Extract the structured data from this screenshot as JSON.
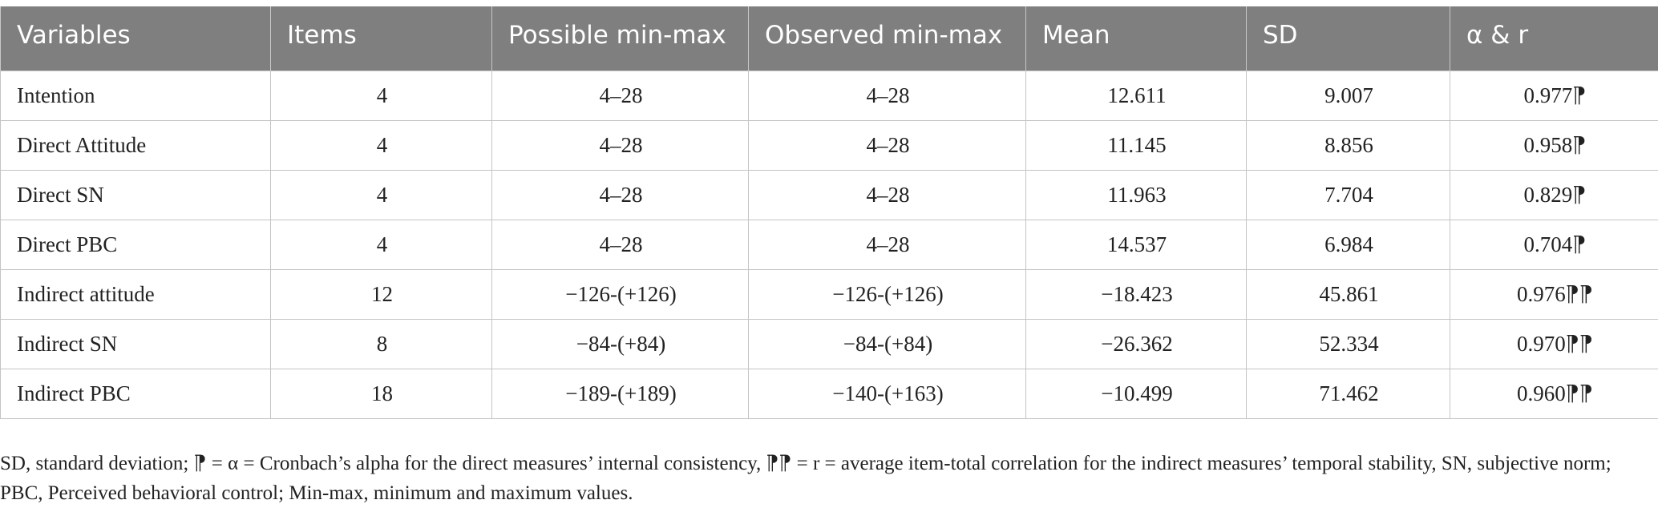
{
  "table": {
    "headers": [
      "Variables",
      "Items",
      "Possible min-max",
      "Observed min-max",
      "Mean",
      "SD",
      "α & r"
    ],
    "rows": [
      [
        "Intention",
        "4",
        "4–28",
        "4–28",
        "12.611",
        "9.007",
        "0.977⁋"
      ],
      [
        "Direct Attitude",
        "4",
        "4–28",
        "4–28",
        "11.145",
        "8.856",
        "0.958⁋"
      ],
      [
        "Direct SN",
        "4",
        "4–28",
        "4–28",
        "11.963",
        "7.704",
        "0.829⁋"
      ],
      [
        "Direct PBC",
        "4",
        "4–28",
        "4–28",
        "14.537",
        "6.984",
        "0.704⁋"
      ],
      [
        "Indirect attitude",
        "12",
        "−126-(+126)",
        "−126-(+126)",
        "−18.423",
        "45.861",
        "0.976⁋⁋"
      ],
      [
        "Indirect SN",
        "8",
        "−84-(+84)",
        "−84-(+84)",
        "−26.362",
        "52.334",
        "0.970⁋⁋"
      ],
      [
        "Indirect PBC",
        "18",
        "−189-(+189)",
        "−140-(+163)",
        "−10.499",
        "71.462",
        "0.960⁋⁋"
      ]
    ]
  },
  "footnote": "SD, standard deviation; ⁋ = α = Cronbach’s alpha for the direct measures’ internal consistency, ⁋⁋ = r = average item-total correlation for the indirect measures’ temporal stability, SN, subjective norm; PBC, Perceived behavioral control; Min-max, minimum and maximum values."
}
